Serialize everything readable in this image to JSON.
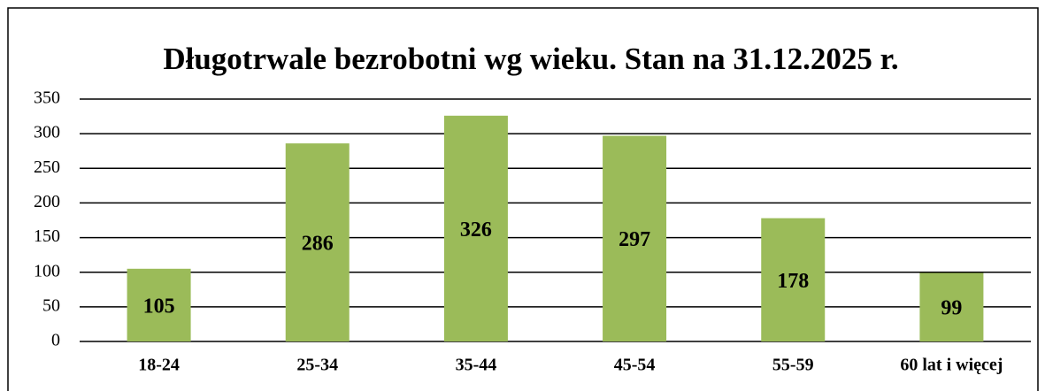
{
  "chart_data": {
    "type": "bar",
    "title": "Długotrwale bezrobotni wg wieku. Stan na 31.12.2025 r.",
    "categories": [
      "18-24",
      "25-34",
      "35-44",
      "45-54",
      "55-59",
      "60 lat i więcej"
    ],
    "values": [
      105,
      286,
      326,
      297,
      178,
      99
    ],
    "color": "#9bbb59",
    "ylim": [
      0,
      350
    ],
    "yticks": [
      0,
      50,
      100,
      150,
      200,
      250,
      300,
      350
    ],
    "grid": true,
    "data_labels": true
  }
}
